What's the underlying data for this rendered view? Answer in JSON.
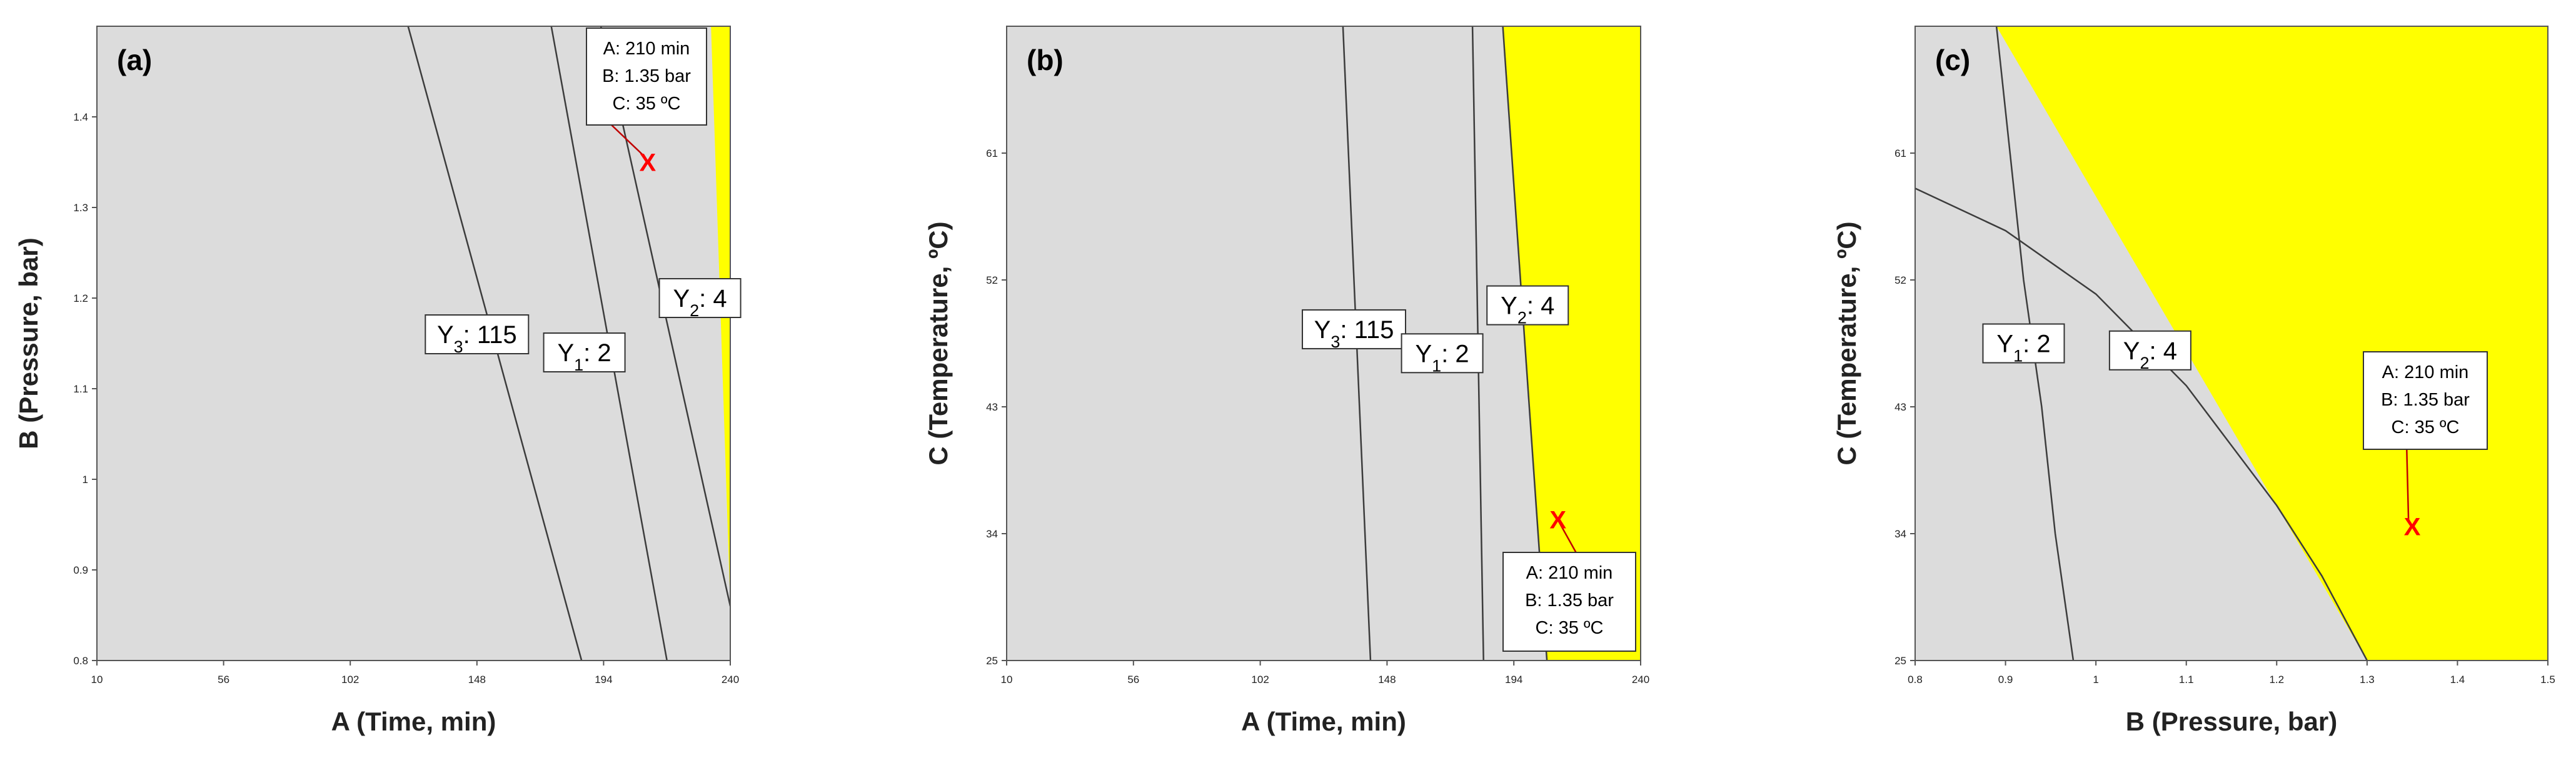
{
  "chart_data": [
    {
      "type": "contour",
      "panel_label": "(a)",
      "xlabel": "A (Time, min)",
      "ylabel": "B (Pressure, bar)",
      "xlim": [
        10,
        240
      ],
      "ylim": [
        0.8,
        1.5
      ],
      "xticks": [
        "10",
        "56",
        "102",
        "148",
        "194",
        "240"
      ],
      "yticks": [
        "0.8",
        "0.9",
        "1",
        "1.1",
        "1.2",
        "1.3",
        "1.4"
      ],
      "shaded_color": "#ffff00",
      "unshaded_color": "#dcdcdc",
      "feasible_region": [
        [
          233,
          1.5
        ],
        [
          240,
          1.5
        ],
        [
          240,
          0.86
        ]
      ],
      "contours": [
        {
          "label_main": "Y",
          "label_sub": "3",
          "label_value": ": 115",
          "label_at": [
            148,
            1.16
          ],
          "points": [
            [
              123,
              1.5
            ],
            [
              186,
              0.8
            ]
          ]
        },
        {
          "label_main": "Y",
          "label_sub": "1",
          "label_value": ": 2",
          "label_at": [
            187,
            1.14
          ],
          "points": [
            [
              175,
              1.5
            ],
            [
              217,
              0.8
            ]
          ]
        },
        {
          "label_main": "Y",
          "label_sub": "2",
          "label_value": ": 4",
          "label_at": [
            229,
            1.2
          ],
          "points": [
            [
              193,
              1.5
            ],
            [
              240,
              0.86
            ]
          ]
        }
      ],
      "optimum": {
        "x": 210,
        "y": 1.35,
        "marker": "X",
        "color": "#ff0000"
      },
      "annotation": {
        "lines": [
          "A: 210 min",
          "B: 1.35 bar",
          "C: 35 ºC"
        ],
        "anchor": "top-right"
      }
    },
    {
      "type": "contour",
      "panel_label": "(b)",
      "xlabel": "A (Time, min)",
      "ylabel": "C  (Temperature, ºC)",
      "xlim": [
        10,
        240
      ],
      "ylim": [
        25,
        70
      ],
      "xticks": [
        "10",
        "56",
        "102",
        "148",
        "194",
        "240"
      ],
      "yticks": [
        "25",
        "34",
        "43",
        "52",
        "61"
      ],
      "shaded_color": "#ffff00",
      "unshaded_color": "#dcdcdc",
      "feasible_region": [
        [
          190,
          70
        ],
        [
          240,
          70
        ],
        [
          240,
          25
        ],
        [
          206,
          25
        ]
      ],
      "contours": [
        {
          "label_main": "Y",
          "label_sub": "3",
          "label_value": ": 115",
          "label_at": [
            136,
            48.5
          ],
          "points": [
            [
              132,
              70
            ],
            [
              142,
              25
            ]
          ]
        },
        {
          "label_main": "Y",
          "label_sub": "1",
          "label_value": ": 2",
          "label_at": [
            168,
            46.8
          ],
          "points": [
            [
              179,
              70
            ],
            [
              183,
              25
            ]
          ]
        },
        {
          "label_main": "Y",
          "label_sub": "2",
          "label_value": ": 4",
          "label_at": [
            199,
            50.2
          ],
          "points": [
            [
              190,
              70
            ],
            [
              206,
              25
            ]
          ]
        }
      ],
      "optimum": {
        "x": 210,
        "y": 35,
        "marker": "X",
        "color": "#ff0000"
      },
      "annotation": {
        "lines": [
          "A: 210 min",
          "B: 1.35 bar",
          "C: 35 ºC"
        ],
        "anchor": "bottom-right"
      }
    },
    {
      "type": "contour",
      "panel_label": "(c)",
      "xlabel": "B (Pressure, bar)",
      "ylabel": "C  (Temperature, ºC)",
      "xlim": [
        0.8,
        1.5
      ],
      "ylim": [
        25,
        70
      ],
      "xticks": [
        "0.8",
        "0.9",
        "1",
        "1.1",
        "1.2",
        "1.3",
        "1.4",
        "1.5"
      ],
      "yticks": [
        "25",
        "34",
        "43",
        "52",
        "61"
      ],
      "shaded_color": "#ffff00",
      "unshaded_color": "#dcdcdc",
      "feasible_region": [
        [
          0.89,
          70
        ],
        [
          1.5,
          70
        ],
        [
          1.5,
          25
        ],
        [
          1.3,
          25
        ]
      ],
      "contours": [
        {
          "label_main": "Y",
          "label_sub": "1",
          "label_value": ": 2",
          "label_at": [
            0.92,
            47.5
          ],
          "points": [
            [
              0.89,
              70
            ],
            [
              0.905,
              61
            ],
            [
              0.92,
              52
            ],
            [
              0.94,
              43
            ],
            [
              0.955,
              34
            ],
            [
              0.975,
              25
            ]
          ]
        },
        {
          "label_main": "Y",
          "label_sub": "2",
          "label_value": ": 4",
          "label_at": [
            1.06,
            47
          ],
          "points": [
            [
              0.8,
              58.5
            ],
            [
              0.9,
              55.5
            ],
            [
              1.0,
              51
            ],
            [
              1.1,
              44.5
            ],
            [
              1.2,
              36
            ],
            [
              1.25,
              31
            ],
            [
              1.3,
              25
            ]
          ]
        }
      ],
      "optimum": {
        "x": 1.35,
        "y": 34.5,
        "marker": "X",
        "color": "#ff0000"
      },
      "annotation": {
        "lines": [
          "A: 210 min",
          "B: 1.35 bar",
          "C: 35 ºC"
        ],
        "anchor": "right-middle"
      }
    }
  ]
}
